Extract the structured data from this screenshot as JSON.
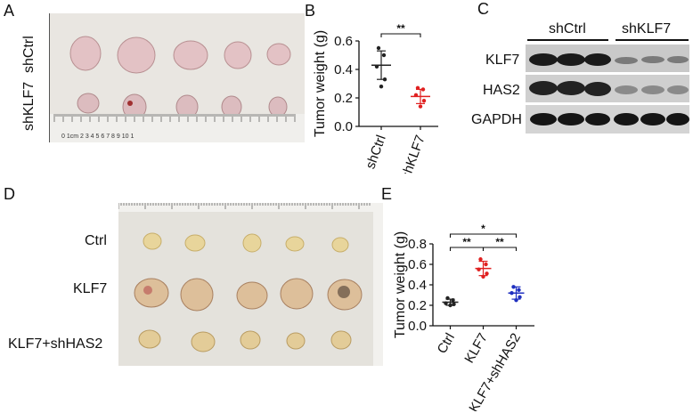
{
  "figure": {
    "panels": {
      "A": {
        "letter": "A",
        "row_labels": [
          "shCtrl",
          "shKLF7"
        ],
        "ruler_text": "0  1cm  2  3  4  5  6  7  8  9  10  1"
      },
      "B": {
        "letter": "B",
        "sig_label": "**"
      },
      "C": {
        "letter": "C",
        "group_labels": [
          "shCtrl",
          "shKLF7"
        ],
        "band_labels": [
          "KLF7",
          "HAS2",
          "GAPDH"
        ]
      },
      "D": {
        "letter": "D",
        "row_labels": [
          "Ctrl",
          "KLF7",
          "KLF7+shHAS2"
        ]
      },
      "E": {
        "letter": "E",
        "sig_labels": [
          "*",
          "**",
          "**"
        ]
      }
    }
  },
  "chart_data": [
    {
      "panel": "B",
      "type": "scatter",
      "ylabel": "Tumor weight (g)",
      "ylim": [
        0.0,
        0.6
      ],
      "yticks": [
        "0.0",
        "0.2",
        "0.4",
        "0.6"
      ],
      "categories": [
        "shCtrl",
        "shKLF7"
      ],
      "colors": [
        "#222222",
        "#e02020"
      ],
      "points": [
        [
          0.55,
          0.5,
          0.42,
          0.33,
          0.28
        ],
        [
          0.27,
          0.26,
          0.22,
          0.18,
          0.14
        ]
      ],
      "mean": [
        0.43,
        0.21
      ],
      "sd": [
        0.1,
        0.05
      ]
    },
    {
      "panel": "E",
      "type": "scatter",
      "ylabel": "Tumor weight (g)",
      "ylim": [
        0.0,
        0.8
      ],
      "yticks": [
        "0.0",
        "0.2",
        "0.4",
        "0.6",
        "0.8"
      ],
      "categories": [
        "Ctrl",
        "KLF7",
        "KLF7+shHAS2"
      ],
      "colors": [
        "#222222",
        "#e02020",
        "#2030c0"
      ],
      "points": [
        [
          0.27,
          0.25,
          0.22,
          0.21,
          0.2
        ],
        [
          0.65,
          0.6,
          0.55,
          0.51,
          0.48
        ],
        [
          0.38,
          0.35,
          0.32,
          0.28,
          0.25
        ]
      ],
      "mean": [
        0.23,
        0.56,
        0.32
      ],
      "sd": [
        0.03,
        0.07,
        0.06
      ]
    }
  ]
}
